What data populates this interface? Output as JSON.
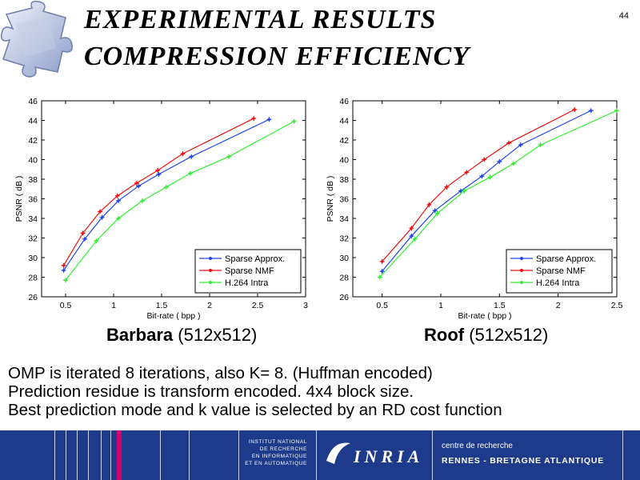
{
  "slide": {
    "title_line1": "Experimental Results",
    "title_line2": "Compression Efficiency",
    "page_number": "44"
  },
  "captions": {
    "left_name": "Barbara",
    "left_size": "(512x512)",
    "right_name": "Roof",
    "right_size": "(512x512)"
  },
  "notes": [
    "OMP is iterated 8 iterations, also K= 8. (Huffman encoded)",
    "Prediction residue is transform encoded. 4x4 block size.",
    "Best prediction mode and k value is selected by an RD cost function"
  ],
  "footer": {
    "institute_lines": [
      "INSTITUT NATIONAL",
      "DE RECHERCHE",
      "EN INFORMATIQUE",
      "ET EN AUTOMATIQUE"
    ],
    "logo_text": "INRIA",
    "centre_text": "centre de recherche",
    "location_text": "RENNES - BRETAGNE ATLANTIQUE"
  },
  "colors": {
    "sparse_approx": "#2244ee",
    "sparse_nmf": "#ee1111",
    "h264": "#33ee33",
    "footer_bg": "#1e3a8a"
  },
  "chart_data": [
    {
      "type": "line",
      "title": "Barbara",
      "xlabel": "Bit-rate ( bpp )",
      "ylabel": "PSNR ( dB )",
      "xlim": [
        0.25,
        3
      ],
      "ylim": [
        26,
        46
      ],
      "xticks": [
        0.5,
        1,
        1.5,
        2,
        2.5,
        3
      ],
      "xtick_labels": [
        "0.5",
        "1",
        "1.5",
        "2",
        "2.5",
        "3"
      ],
      "yticks": [
        26,
        28,
        30,
        32,
        34,
        36,
        38,
        40,
        42,
        44,
        46
      ],
      "legend_position": "bottom-right",
      "series": [
        {
          "name": "Sparse Approx.",
          "color": "#2244ee",
          "x": [
            0.48,
            0.7,
            0.88,
            1.05,
            1.26,
            1.47,
            1.81,
            2.62
          ],
          "y": [
            28.7,
            31.9,
            34.1,
            35.8,
            37.3,
            38.5,
            40.3,
            44.1
          ]
        },
        {
          "name": "Sparse NMF",
          "color": "#ee1111",
          "x": [
            0.48,
            0.68,
            0.86,
            1.04,
            1.24,
            1.46,
            1.72,
            2.46
          ],
          "y": [
            29.2,
            32.5,
            34.7,
            36.3,
            37.6,
            38.9,
            40.6,
            44.2
          ]
        },
        {
          "name": "H.264 Intra",
          "color": "#33ee33",
          "x": [
            0.5,
            0.82,
            1.05,
            1.3,
            1.55,
            1.8,
            2.2,
            2.88
          ],
          "y": [
            27.7,
            31.7,
            34.0,
            35.8,
            37.2,
            38.6,
            40.3,
            43.9
          ]
        }
      ]
    },
    {
      "type": "line",
      "title": "Roof",
      "xlabel": "Bit-rate ( bpp )",
      "ylabel": "PSNR ( dB )",
      "xlim": [
        0.25,
        2.5
      ],
      "ylim": [
        26,
        46
      ],
      "xticks": [
        0.5,
        1,
        1.5,
        2,
        2.5
      ],
      "xtick_labels": [
        "0.5",
        "1",
        "1.5",
        "2",
        "2.5"
      ],
      "yticks": [
        26,
        28,
        30,
        32,
        34,
        36,
        38,
        40,
        42,
        44,
        46
      ],
      "legend_position": "bottom-right",
      "series": [
        {
          "name": "Sparse Approx.",
          "color": "#2244ee",
          "x": [
            0.5,
            0.75,
            0.95,
            1.17,
            1.35,
            1.5,
            1.68,
            2.28
          ],
          "y": [
            28.6,
            32.2,
            34.8,
            36.8,
            38.3,
            39.8,
            41.5,
            45.0
          ]
        },
        {
          "name": "Sparse NMF",
          "color": "#ee1111",
          "x": [
            0.5,
            0.75,
            0.9,
            1.05,
            1.22,
            1.37,
            1.58,
            2.14
          ],
          "y": [
            29.6,
            33.0,
            35.4,
            37.2,
            38.7,
            40.0,
            41.7,
            45.1
          ]
        },
        {
          "name": "H.264 Intra",
          "color": "#33ee33",
          "x": [
            0.48,
            0.78,
            0.97,
            1.2,
            1.42,
            1.62,
            1.85,
            2.5
          ],
          "y": [
            28.0,
            31.9,
            34.5,
            36.8,
            38.2,
            39.6,
            41.5,
            45.0
          ]
        }
      ]
    }
  ]
}
